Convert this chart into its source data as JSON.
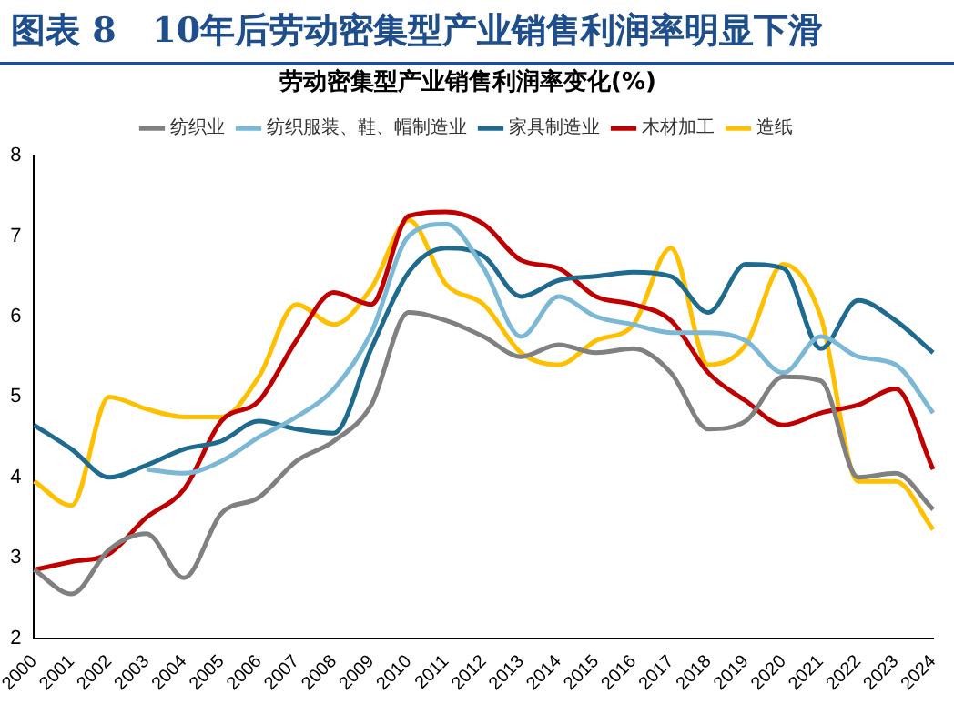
{
  "chart_data": {
    "type": "line",
    "title": "图表 8   10年后劳动密集型产业销售利润率明显下滑",
    "subtitle": "劳动密集型产业销售利润率变化(%)",
    "categories": [
      "2000",
      "2001",
      "2002",
      "2003",
      "2004",
      "2005",
      "2006",
      "2007",
      "2008",
      "2009",
      "2010",
      "2011",
      "2012",
      "2013",
      "2014",
      "2015",
      "2016",
      "2017",
      "2018",
      "2019",
      "2020",
      "2021",
      "2022",
      "2023",
      "2024"
    ],
    "series": [
      {
        "name": "纺织业",
        "color": "#808080",
        "values": [
          2.85,
          2.55,
          3.1,
          3.3,
          2.75,
          3.55,
          3.75,
          4.2,
          4.45,
          4.9,
          6.05,
          5.95,
          5.75,
          5.5,
          5.65,
          5.55,
          5.6,
          5.3,
          4.6,
          4.7,
          5.25,
          5.2,
          4.0,
          4.05,
          3.6
        ]
      },
      {
        "name": "纺织服装、鞋、帽制造业",
        "color": "#7ab8d6",
        "values": [
          null,
          null,
          null,
          4.1,
          4.05,
          4.2,
          4.5,
          4.75,
          5.1,
          5.8,
          7.0,
          7.15,
          6.6,
          5.75,
          6.25,
          6.0,
          5.9,
          5.8,
          5.8,
          5.7,
          5.3,
          5.75,
          5.5,
          5.4,
          4.8
        ]
      },
      {
        "name": "家具制造业",
        "color": "#1f6a8f",
        "values": [
          4.65,
          4.35,
          4.0,
          4.15,
          4.35,
          4.45,
          4.7,
          4.6,
          4.55,
          5.6,
          6.55,
          6.85,
          6.75,
          6.25,
          6.45,
          6.5,
          6.55,
          6.5,
          6.05,
          6.65,
          6.6,
          5.6,
          6.2,
          5.95,
          5.55
        ]
      },
      {
        "name": "木材加工",
        "color": "#c00000",
        "values": [
          2.85,
          2.95,
          3.05,
          3.5,
          3.85,
          4.7,
          4.95,
          5.7,
          6.3,
          6.15,
          7.25,
          7.3,
          7.15,
          6.7,
          6.6,
          6.25,
          6.15,
          5.95,
          5.3,
          4.95,
          4.65,
          4.8,
          4.9,
          5.1,
          4.1
        ]
      },
      {
        "name": "造纸",
        "color": "#ffc000",
        "values": [
          3.95,
          3.65,
          5.0,
          4.85,
          4.75,
          4.75,
          5.25,
          6.15,
          5.9,
          6.35,
          7.2,
          6.4,
          6.15,
          5.55,
          5.4,
          5.7,
          5.9,
          6.85,
          5.4,
          5.65,
          6.65,
          6.0,
          3.95,
          3.95,
          3.35
        ]
      }
    ],
    "ylim": [
      2,
      8
    ],
    "yticks": [
      2,
      3,
      4,
      5,
      6,
      7,
      8
    ],
    "grid": false,
    "legend": "top",
    "marker": "none",
    "line_style": "solid"
  }
}
